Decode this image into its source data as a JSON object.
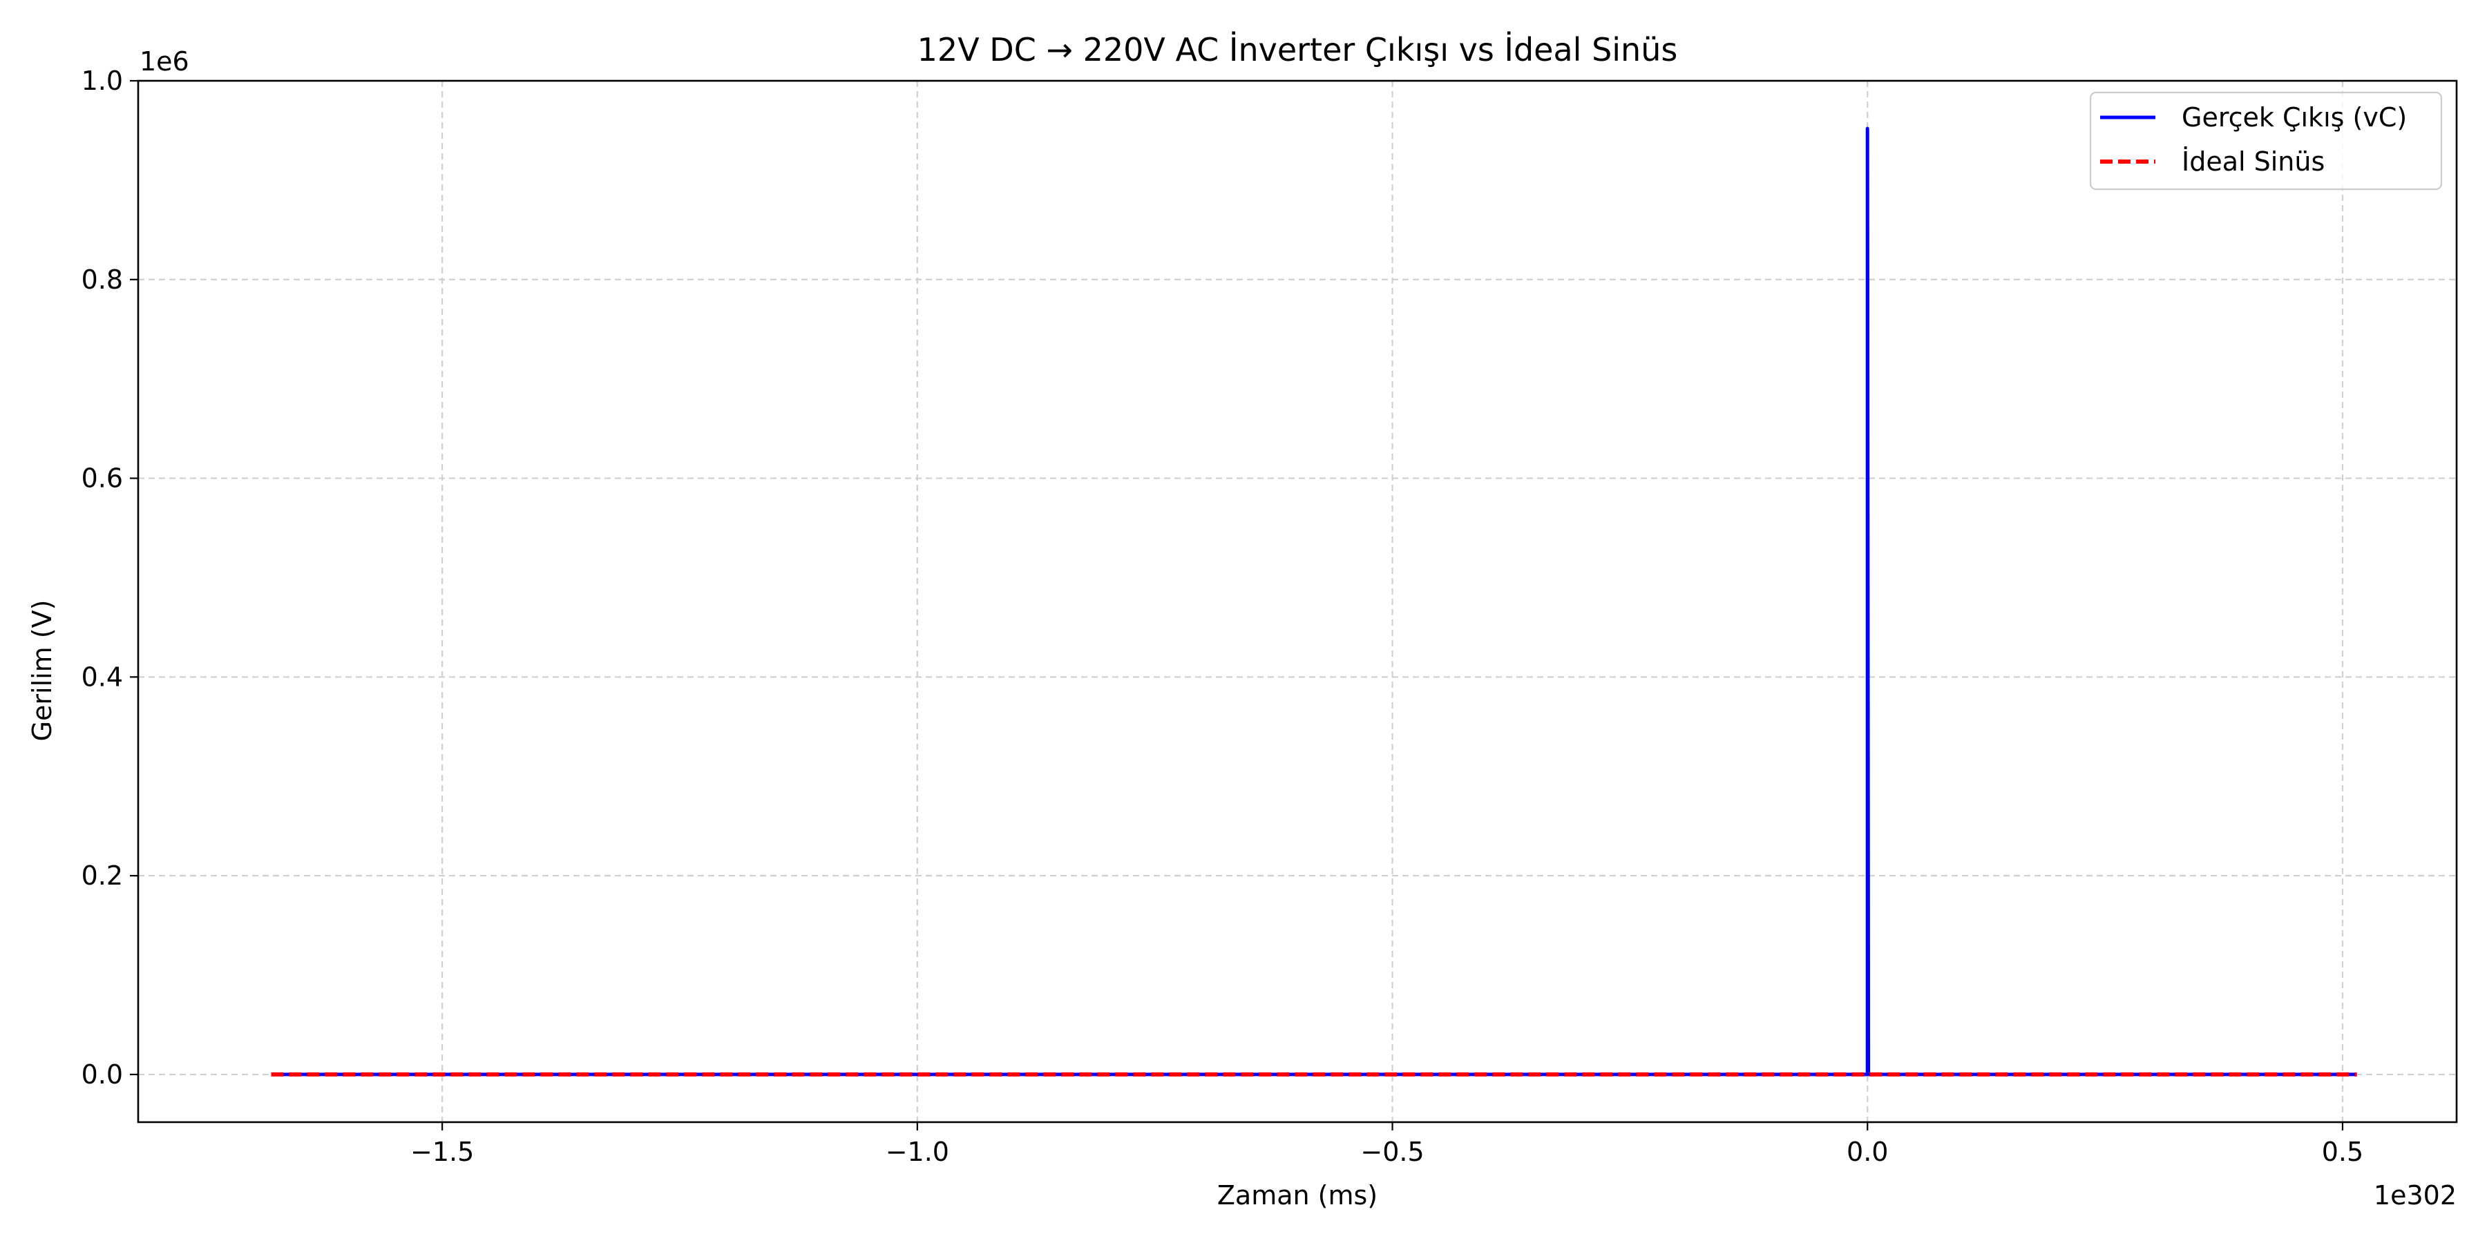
{
  "chart_data": {
    "type": "line",
    "title": "12V DC → 220V AC İnverter Çıkışı vs İdeal Sinüs",
    "xlabel": "Zaman (ms)",
    "ylabel": "Gerilim (V)",
    "x_offset_label": "1e302",
    "y_offset_label": "1e6",
    "xlim": [
      -1.82,
      0.62
    ],
    "ylim": [
      -0.048,
      1.0
    ],
    "x_ticks": [
      -1.5,
      -1.0,
      -0.5,
      0.0,
      0.5
    ],
    "x_tick_labels": [
      "−1.5",
      "−1.0",
      "−0.5",
      "0.0",
      "0.5"
    ],
    "y_ticks": [
      0.0,
      0.2,
      0.4,
      0.6,
      0.8,
      1.0
    ],
    "y_tick_labels": [
      "0.0",
      "0.2",
      "0.4",
      "0.6",
      "0.8",
      "1.0"
    ],
    "grid": true,
    "legend_position": "top-right",
    "series": [
      {
        "name": "Gerçek Çıkış (vC)",
        "color": "#0000ff",
        "style": "solid",
        "x": [
          -1.68,
          -0.001,
          0.0,
          0.0,
          0.001,
          0.515
        ],
        "y": [
          0.0,
          0.0,
          0.0,
          0.952,
          0.0,
          0.0
        ]
      },
      {
        "name": "İdeal Sinüs",
        "color": "#ff0000",
        "style": "dashed",
        "x": [
          -1.68,
          0.515
        ],
        "y": [
          0.0,
          0.0
        ]
      }
    ]
  }
}
